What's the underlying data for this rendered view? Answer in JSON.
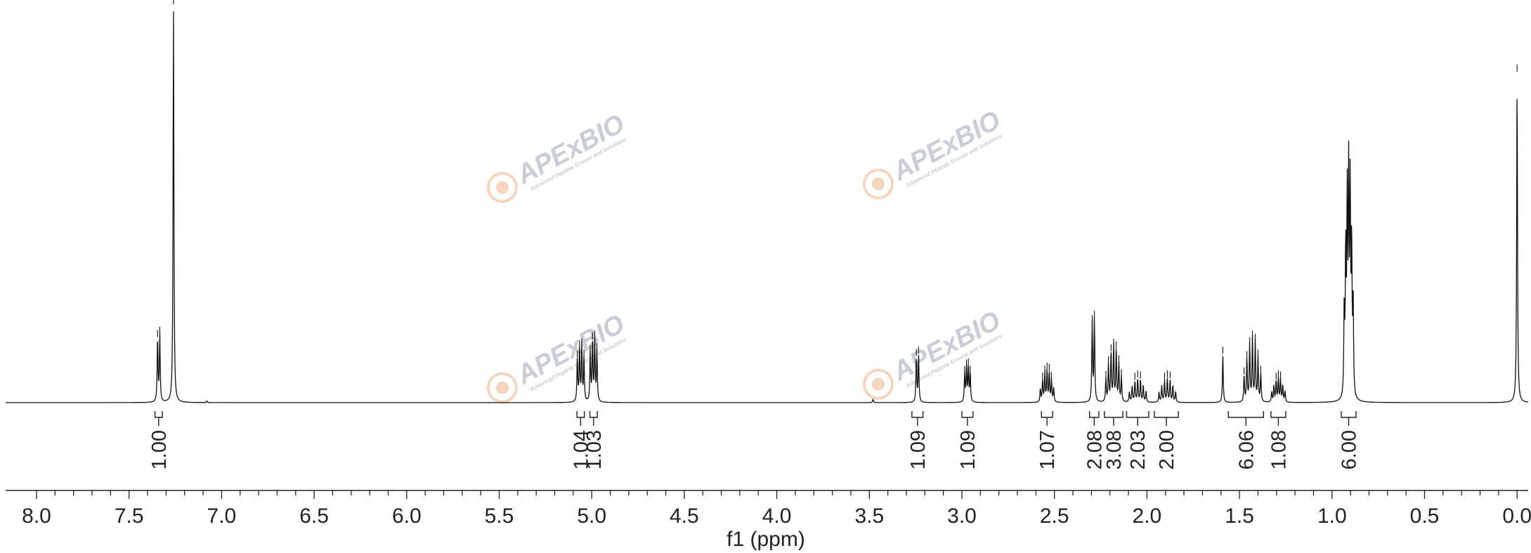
{
  "chart_data": {
    "type": "line",
    "xlabel": "f1 (ppm)",
    "xlim": [
      8.2,
      0.0
    ],
    "x_ticks": [
      "8.0",
      "7.5",
      "7.0",
      "6.5",
      "6.0",
      "5.5",
      "5.0",
      "4.5",
      "4.0",
      "3.5",
      "3.0",
      "2.5",
      "2.0",
      "1.5",
      "1.0",
      "0.5",
      "0.0"
    ],
    "x_tick_values": [
      8.0,
      7.5,
      7.0,
      6.5,
      6.0,
      5.5,
      5.0,
      4.5,
      4.0,
      3.5,
      3.0,
      2.5,
      2.0,
      1.5,
      1.0,
      0.5,
      0.0
    ],
    "grid": false,
    "peaks": [
      {
        "ppm": 7.34,
        "height": 0.17,
        "pattern": "d",
        "spacing": 0.012
      },
      {
        "ppm": 7.26,
        "height": 1.0,
        "pattern": "s"
      },
      {
        "ppm": 7.08,
        "height": 0.004,
        "pattern": "s"
      },
      {
        "ppm": 5.06,
        "height": 0.14,
        "pattern": "dd",
        "spacing": 0.012
      },
      {
        "ppm": 4.99,
        "height": 0.16,
        "pattern": "dd",
        "spacing": 0.012
      },
      {
        "ppm": 3.48,
        "height": 0.008,
        "pattern": "s"
      },
      {
        "ppm": 3.24,
        "height": 0.12,
        "pattern": "d",
        "spacing": 0.012
      },
      {
        "ppm": 2.97,
        "height": 0.09,
        "pattern": "dd",
        "spacing": 0.01
      },
      {
        "ppm": 2.54,
        "height": 0.08,
        "pattern": "m",
        "spacing": 0.012
      },
      {
        "ppm": 2.29,
        "height": 0.21,
        "pattern": "d",
        "spacing": 0.012
      },
      {
        "ppm": 2.18,
        "height": 0.14,
        "pattern": "m",
        "spacing": 0.014
      },
      {
        "ppm": 2.05,
        "height": 0.06,
        "pattern": "m",
        "spacing": 0.015
      },
      {
        "ppm": 1.89,
        "height": 0.06,
        "pattern": "m",
        "spacing": 0.015
      },
      {
        "ppm": 1.59,
        "height": 0.12,
        "pattern": "s"
      },
      {
        "ppm": 1.43,
        "height": 0.16,
        "pattern": "m",
        "spacing": 0.015
      },
      {
        "ppm": 1.29,
        "height": 0.06,
        "pattern": "m",
        "spacing": 0.012
      },
      {
        "ppm": 0.91,
        "height": 0.54,
        "pattern": "m",
        "spacing": 0.008
      },
      {
        "ppm": 0.0,
        "height": 0.83,
        "pattern": "s"
      }
    ],
    "integrals": [
      {
        "label": "1.00",
        "from": 7.36,
        "to": 7.32
      },
      {
        "label": "1.04",
        "from": 5.08,
        "to": 5.04
      },
      {
        "label": "1.03",
        "from": 5.01,
        "to": 4.97
      },
      {
        "label": "1.09",
        "from": 3.27,
        "to": 3.21
      },
      {
        "label": "1.09",
        "from": 3.0,
        "to": 2.94
      },
      {
        "label": "1.07",
        "from": 2.57,
        "to": 2.51
      },
      {
        "label": "2.08",
        "from": 2.31,
        "to": 2.26
      },
      {
        "label": "3.08",
        "from": 2.23,
        "to": 2.13
      },
      {
        "label": "2.03",
        "from": 2.11,
        "to": 1.99
      },
      {
        "label": "2.00",
        "from": 1.96,
        "to": 1.83
      },
      {
        "label": "6.06",
        "from": 1.56,
        "to": 1.37
      },
      {
        "label": "1.08",
        "from": 1.33,
        "to": 1.25
      },
      {
        "label": "6.00",
        "from": 0.95,
        "to": 0.87
      }
    ]
  },
  "watermark": {
    "brand_text": "APExBIO",
    "tagline": "Advanced Peptide Ensure and Solutions",
    "brand_color": "#b9bcc9",
    "icon_color": "#f3c7a8"
  }
}
